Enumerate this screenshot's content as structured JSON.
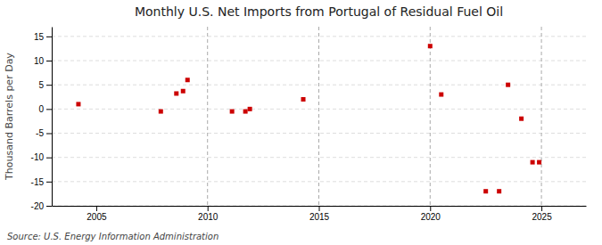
{
  "chart_data": {
    "type": "scatter",
    "title": "Monthly U.S. Net Imports from Portugal of Residual Fuel Oil",
    "ylabel": "Thousand Barrels per Day",
    "annotations": [
      "Source: U.S. Energy Information Administration"
    ],
    "x": [
      2004.2,
      2007.9,
      2008.6,
      2008.9,
      2009.1,
      2011.1,
      2011.7,
      2011.9,
      2014.3,
      2020.0,
      2020.5,
      2022.5,
      2023.1,
      2023.5,
      2024.1,
      2024.6,
      2024.9
    ],
    "values": [
      1,
      -0.5,
      3.2,
      3.7,
      6,
      -0.5,
      -0.5,
      0,
      2,
      13,
      3,
      -17,
      -17,
      5,
      -2,
      -11,
      -11
    ],
    "color": "#cc0000",
    "marker": "square",
    "xlim": [
      2003.0,
      2027.0
    ],
    "ylim": [
      -20,
      17
    ],
    "xticks": [
      2005,
      2010,
      2015,
      2020,
      2025
    ],
    "yticks": [
      -20,
      -15,
      -10,
      -5,
      0,
      5,
      10,
      15
    ],
    "vlines": [
      2010,
      2015,
      2020,
      2025
    ],
    "grid": true
  }
}
